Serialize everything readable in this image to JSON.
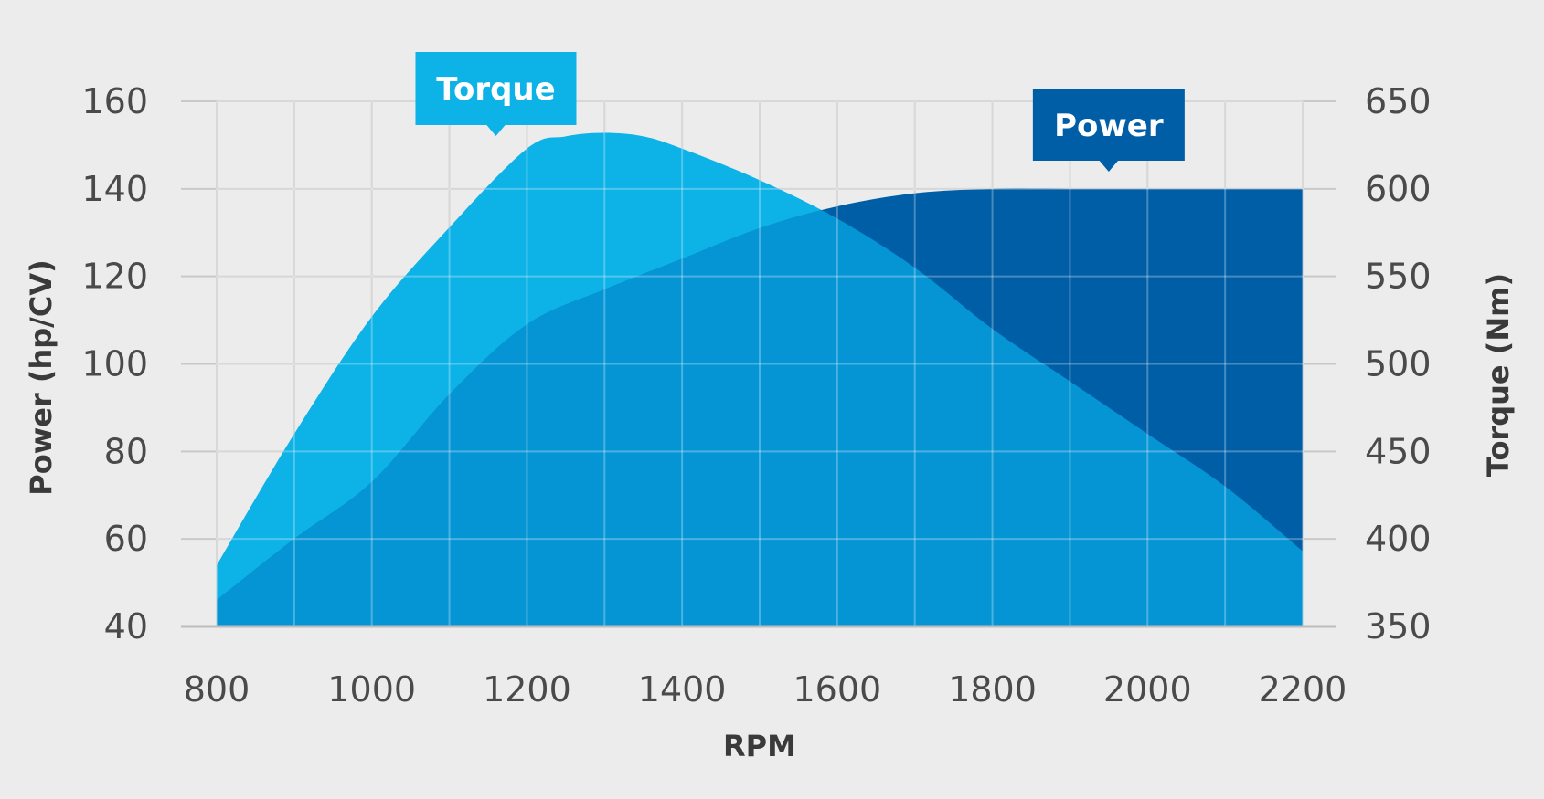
{
  "chart_data": {
    "type": "area",
    "title": "",
    "xlabel": "RPM",
    "ylabel_left": "Power (hp/CV)",
    "ylabel_right": "Torque (Nm)",
    "xlim": [
      800,
      2200
    ],
    "ylim_left": [
      40,
      160
    ],
    "ylim_right": [
      350,
      650
    ],
    "x_ticks": [
      800,
      1000,
      1200,
      1400,
      1600,
      1800,
      2000,
      2200
    ],
    "y_left_ticks": [
      40,
      60,
      80,
      100,
      120,
      140,
      160
    ],
    "y_right_ticks": [
      350,
      400,
      450,
      500,
      550,
      600,
      650
    ],
    "x_gridlines": [
      800,
      900,
      1000,
      1100,
      1200,
      1300,
      1400,
      1500,
      1600,
      1700,
      1800,
      1900,
      2000,
      2100,
      2200
    ],
    "grid": true,
    "series": [
      {
        "name": "Torque",
        "axis": "right",
        "color": "#0db2e6",
        "x": [
          800,
          900,
          1000,
          1100,
          1200,
          1250,
          1300,
          1350,
          1400,
          1500,
          1600,
          1700,
          1800,
          1900,
          2000,
          2100,
          2200
        ],
        "values": [
          385,
          460,
          527,
          578,
          623,
          630,
          632,
          630,
          623,
          605,
          583,
          555,
          520,
          490,
          460,
          430,
          393
        ]
      },
      {
        "name": "Power",
        "axis": "left",
        "color": "#005ea6",
        "x": [
          800,
          900,
          1000,
          1100,
          1200,
          1300,
          1400,
          1500,
          1600,
          1700,
          1800,
          1900,
          2000,
          2100,
          2200
        ],
        "values": [
          46,
          60,
          73,
          93,
          109,
          117,
          124,
          131,
          136,
          139,
          140,
          140,
          140,
          140,
          140
        ]
      }
    ],
    "overlap_color": "#0595d4",
    "callouts": [
      {
        "text": "Torque",
        "series": "Torque",
        "color": "#0db2e6",
        "x": 1160
      },
      {
        "text": "Power",
        "series": "Power",
        "color": "#005ea6",
        "x": 1950
      }
    ]
  }
}
